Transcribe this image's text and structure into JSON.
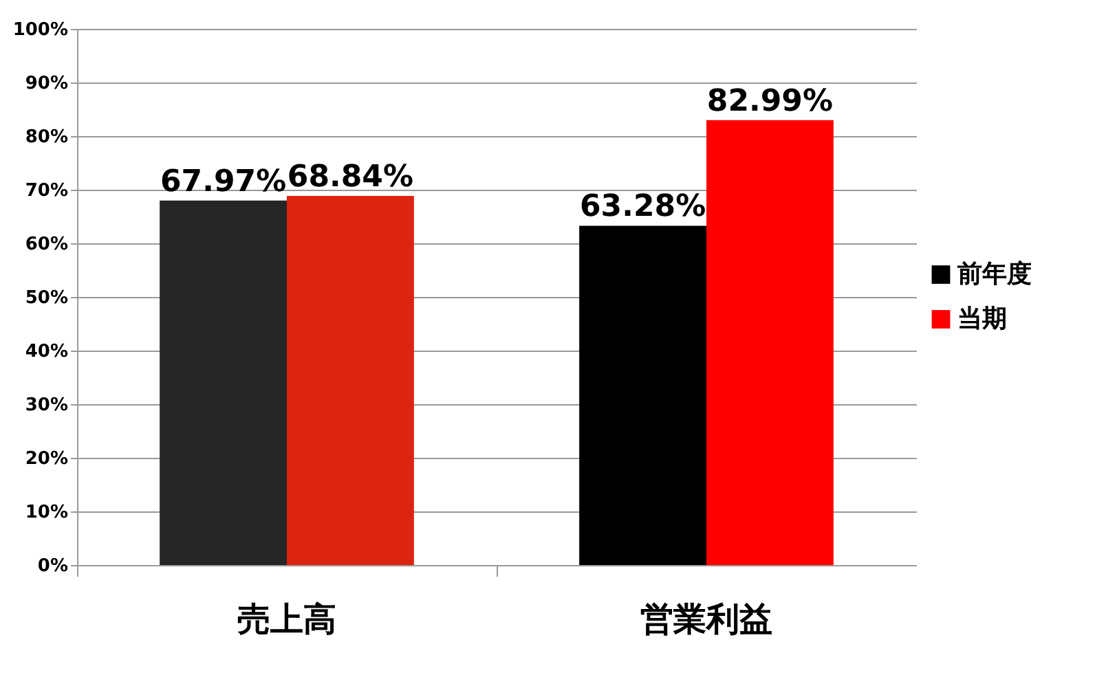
{
  "chart_data": {
    "type": "bar",
    "categories": [
      "売上高",
      "営業利益"
    ],
    "series": [
      {
        "name": "前年度",
        "color": "#000000",
        "colors": [
          "#262626",
          "#000000"
        ],
        "values": [
          67.97,
          63.28
        ],
        "value_labels": [
          "67.97%",
          "63.28%"
        ]
      },
      {
        "name": "当期",
        "color": "#ff0000",
        "colors": [
          "#dc2410",
          "#ff0000"
        ],
        "values": [
          68.84,
          82.99
        ],
        "value_labels": [
          "68.84%",
          "82.99%"
        ]
      }
    ],
    "ylim": [
      0,
      100
    ],
    "yticks": [
      {
        "value": 0,
        "label": "0%"
      },
      {
        "value": 10,
        "label": "10%"
      },
      {
        "value": 20,
        "label": "20%"
      },
      {
        "value": 30,
        "label": "30%"
      },
      {
        "value": 40,
        "label": "40%"
      },
      {
        "value": 50,
        "label": "50%"
      },
      {
        "value": 60,
        "label": "60%"
      },
      {
        "value": 70,
        "label": "70%"
      },
      {
        "value": 80,
        "label": "80%"
      },
      {
        "value": 90,
        "label": "90%"
      },
      {
        "value": 100,
        "label": "100%"
      }
    ],
    "grid": "y",
    "legend": "right"
  }
}
